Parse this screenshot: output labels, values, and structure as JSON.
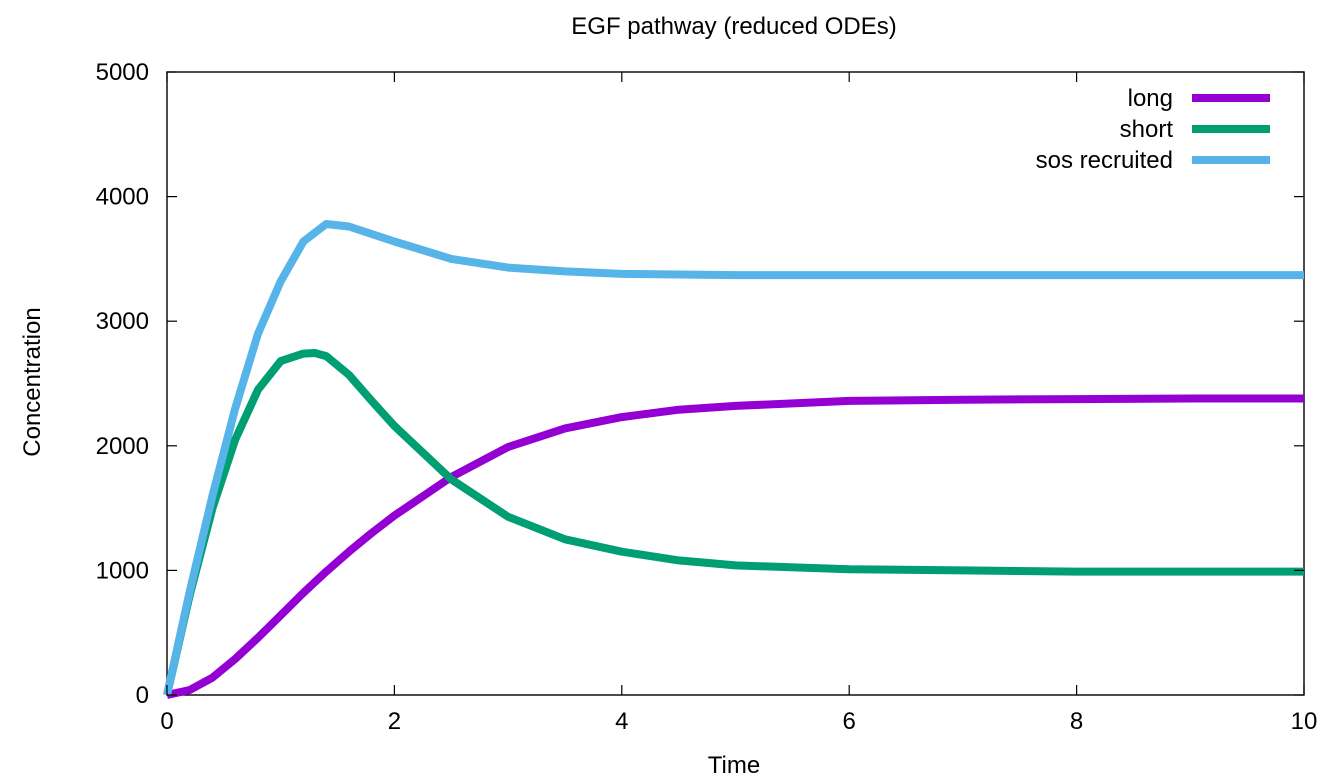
{
  "chart_data": {
    "type": "line",
    "title": "EGF pathway (reduced ODEs)",
    "xlabel": "Time",
    "ylabel": "Concentration",
    "xlim": [
      0,
      10
    ],
    "ylim": [
      0,
      5000
    ],
    "xticks": [
      0,
      2,
      4,
      6,
      8,
      10
    ],
    "yticks": [
      0,
      1000,
      2000,
      3000,
      4000,
      5000
    ],
    "grid": false,
    "legend_position": "top-right",
    "series": [
      {
        "name": "long",
        "color": "#9400d3",
        "x": [
          0,
          0.2,
          0.4,
          0.6,
          0.8,
          1.0,
          1.2,
          1.4,
          1.6,
          1.8,
          2.0,
          2.5,
          3.0,
          3.5,
          4.0,
          4.5,
          5.0,
          6.0,
          7.0,
          8.0,
          9.0,
          10.0
        ],
        "y": [
          0,
          40,
          140,
          290,
          460,
          640,
          820,
          990,
          1150,
          1300,
          1440,
          1750,
          1990,
          2140,
          2230,
          2290,
          2320,
          2360,
          2370,
          2375,
          2380,
          2380
        ]
      },
      {
        "name": "short",
        "color": "#009e73",
        "x": [
          0,
          0.2,
          0.4,
          0.6,
          0.8,
          1.0,
          1.2,
          1.3,
          1.4,
          1.6,
          1.8,
          2.0,
          2.5,
          3.0,
          3.5,
          4.0,
          4.5,
          5.0,
          6.0,
          7.0,
          8.0,
          9.0,
          10.0
        ],
        "y": [
          0,
          800,
          1500,
          2050,
          2450,
          2680,
          2740,
          2745,
          2720,
          2570,
          2360,
          2160,
          1730,
          1430,
          1250,
          1150,
          1080,
          1040,
          1010,
          1000,
          990,
          990,
          990
        ]
      },
      {
        "name": "sos recruited",
        "color": "#56b4e9",
        "x": [
          0,
          0.2,
          0.4,
          0.6,
          0.8,
          1.0,
          1.2,
          1.4,
          1.6,
          1.8,
          2.0,
          2.5,
          3.0,
          3.5,
          4.0,
          4.5,
          5.0,
          6.0,
          7.0,
          8.0,
          9.0,
          10.0
        ],
        "y": [
          0,
          830,
          1600,
          2300,
          2900,
          3320,
          3640,
          3780,
          3760,
          3700,
          3640,
          3500,
          3430,
          3400,
          3380,
          3375,
          3370,
          3370,
          3370,
          3370,
          3370,
          3370
        ]
      }
    ]
  }
}
